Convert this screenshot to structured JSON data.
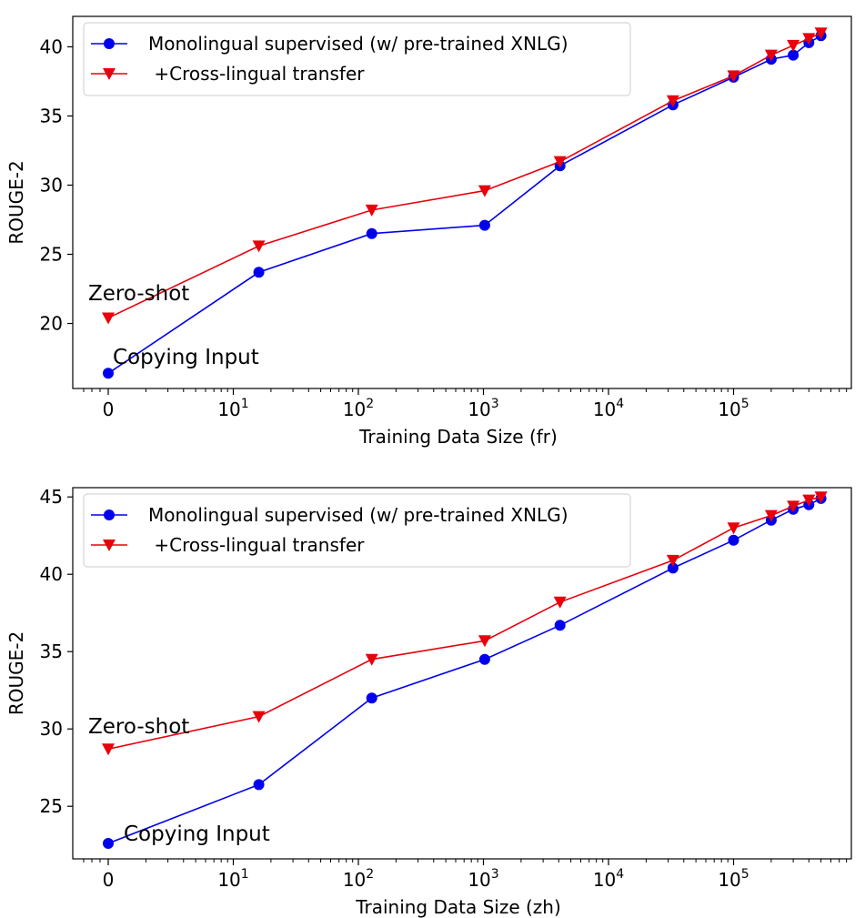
{
  "chart_data": [
    {
      "type": "line",
      "xlabel": "Training Data Size (fr)",
      "ylabel": "ROUGE-2",
      "x": [
        0,
        16,
        128,
        1024,
        4096,
        32768,
        100000,
        200000,
        300000,
        400000,
        500000
      ],
      "xscale": "symlog",
      "xticks": [
        "0",
        "10^1",
        "10^2",
        "10^3",
        "10^4",
        "10^5"
      ],
      "yticks": [
        20,
        25,
        30,
        35,
        40
      ],
      "ylim": [
        15.3,
        42.2
      ],
      "grid": false,
      "legend_position": "top-left",
      "series": [
        {
          "name": "Monolingual supervised (w/ pre-trained XNLG)",
          "color": "#0000ee",
          "marker": "circle",
          "values": [
            16.4,
            23.7,
            26.5,
            27.1,
            31.4,
            35.8,
            37.8,
            39.1,
            39.4,
            40.3,
            40.8
          ]
        },
        {
          "name": " +Cross-lingual transfer",
          "color": "#e8000b",
          "marker": "triangle-down",
          "values": [
            20.4,
            25.6,
            28.2,
            29.6,
            31.7,
            36.1,
            37.9,
            39.4,
            40.1,
            40.6,
            41.0
          ]
        }
      ],
      "annotations": [
        {
          "text": "Zero-shot"
        },
        {
          "text": "Copying Input"
        }
      ]
    },
    {
      "type": "line",
      "xlabel": "Training Data Size (zh)",
      "ylabel": "ROUGE-2",
      "x": [
        0,
        16,
        128,
        1024,
        4096,
        32768,
        100000,
        200000,
        300000,
        400000,
        500000
      ],
      "xscale": "symlog",
      "xticks": [
        "0",
        "10^1",
        "10^2",
        "10^3",
        "10^4",
        "10^5"
      ],
      "yticks": [
        25,
        30,
        35,
        40,
        45
      ],
      "ylim": [
        21.6,
        45.6
      ],
      "grid": false,
      "legend_position": "top-left",
      "series": [
        {
          "name": "Monolingual supervised (w/ pre-trained XNLG)",
          "color": "#0000ee",
          "marker": "circle",
          "values": [
            22.6,
            26.4,
            32.0,
            34.5,
            36.7,
            40.4,
            42.2,
            43.5,
            44.2,
            44.5,
            44.9
          ]
        },
        {
          "name": " +Cross-lingual transfer",
          "color": "#e8000b",
          "marker": "triangle-down",
          "values": [
            28.7,
            30.8,
            34.5,
            35.7,
            38.2,
            40.9,
            43.0,
            43.8,
            44.4,
            44.8,
            45.0
          ]
        }
      ],
      "annotations": [
        {
          "text": "Zero-shot"
        },
        {
          "text": "Copying Input"
        }
      ]
    }
  ]
}
